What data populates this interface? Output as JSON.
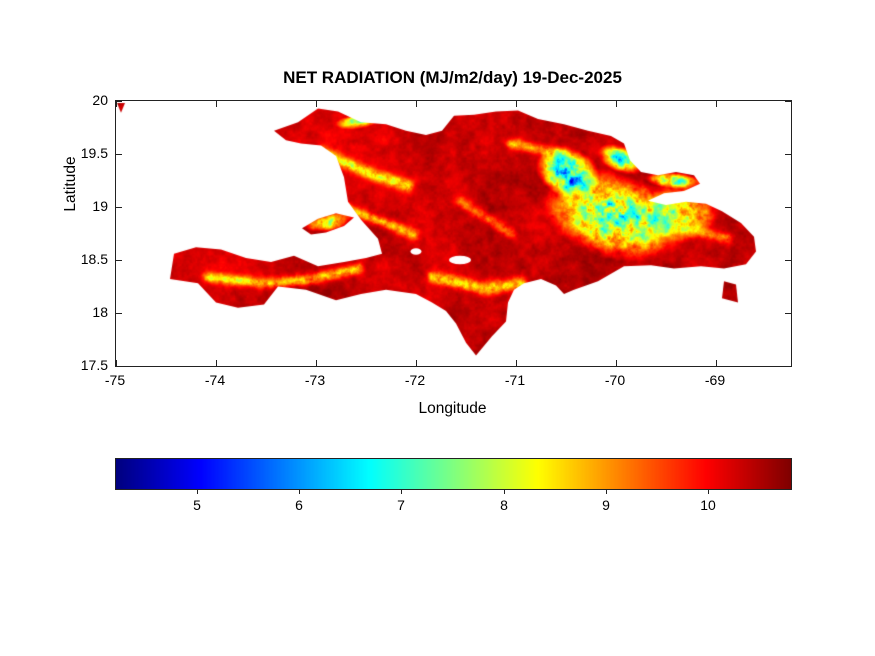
{
  "chart_data": {
    "type": "heatmap",
    "title": "NET RADIATION (MJ/m2/day) 19-Dec-2025",
    "xlabel": "Longitude",
    "ylabel": "Latitude",
    "xlim": [
      -75,
      -68.25
    ],
    "ylim": [
      17.5,
      20
    ],
    "xticks": [
      -75,
      -74,
      -73,
      -72,
      -71,
      -70,
      -69
    ],
    "yticks": [
      20,
      19.5,
      19,
      18.5,
      18,
      17.5
    ],
    "colormap": "jet",
    "value_units": "MJ/m2/day",
    "colorbar": {
      "range": [
        4.2,
        10.8
      ],
      "ticks": [
        5,
        6,
        7,
        8,
        9,
        10
      ]
    },
    "region": "Hispaniola",
    "value_range_displayed": [
      4.5,
      10.65
    ],
    "dominant_value": 10.2,
    "gradient_description": "dark red (9.5-10.6) over most of the island; mottled cyan/green/blue patch (5-8) in the east-central valley region; yellow-green ridge lines along mountain chains",
    "polygons": {
      "regions": [
        {
          "name": "hispaniola-main",
          "points": [
            [
              -73.42,
              19.72
            ],
            [
              -73.18,
              19.8
            ],
            [
              -72.98,
              19.93
            ],
            [
              -72.78,
              19.9
            ],
            [
              -72.55,
              19.8
            ],
            [
              -72.3,
              19.78
            ],
            [
              -72.1,
              19.72
            ],
            [
              -71.9,
              19.68
            ],
            [
              -71.74,
              19.72
            ],
            [
              -71.62,
              19.86
            ],
            [
              -71.42,
              19.87
            ],
            [
              -71.2,
              19.9
            ],
            [
              -70.98,
              19.91
            ],
            [
              -70.78,
              19.83
            ],
            [
              -70.52,
              19.78
            ],
            [
              -70.28,
              19.72
            ],
            [
              -70.05,
              19.67
            ],
            [
              -69.92,
              19.6
            ],
            [
              -69.86,
              19.44
            ],
            [
              -69.75,
              19.33
            ],
            [
              -69.58,
              19.3
            ],
            [
              -69.4,
              19.33
            ],
            [
              -69.22,
              19.3
            ],
            [
              -69.16,
              19.22
            ],
            [
              -69.32,
              19.15
            ],
            [
              -69.52,
              19.13
            ],
            [
              -69.68,
              19.06
            ],
            [
              -69.5,
              19.02
            ],
            [
              -69.3,
              19.05
            ],
            [
              -69.1,
              19.03
            ],
            [
              -68.94,
              18.96
            ],
            [
              -68.75,
              18.85
            ],
            [
              -68.62,
              18.72
            ],
            [
              -68.6,
              18.58
            ],
            [
              -68.7,
              18.46
            ],
            [
              -68.92,
              18.42
            ],
            [
              -69.15,
              18.44
            ],
            [
              -69.42,
              18.42
            ],
            [
              -69.65,
              18.45
            ],
            [
              -69.92,
              18.44
            ],
            [
              -70.18,
              18.3
            ],
            [
              -70.42,
              18.22
            ],
            [
              -70.52,
              18.18
            ],
            [
              -70.6,
              18.26
            ],
            [
              -70.75,
              18.32
            ],
            [
              -70.92,
              18.28
            ],
            [
              -71.02,
              18.22
            ],
            [
              -71.08,
              18.1
            ],
            [
              -71.1,
              17.92
            ],
            [
              -71.24,
              17.78
            ],
            [
              -71.4,
              17.6
            ],
            [
              -71.5,
              17.72
            ],
            [
              -71.6,
              17.9
            ],
            [
              -71.7,
              18.02
            ],
            [
              -71.84,
              18.1
            ],
            [
              -72.0,
              18.18
            ],
            [
              -72.3,
              18.22
            ],
            [
              -72.55,
              18.18
            ],
            [
              -72.8,
              18.12
            ],
            [
              -73.1,
              18.22
            ],
            [
              -73.38,
              18.25
            ],
            [
              -73.52,
              18.08
            ],
            [
              -73.78,
              18.05
            ],
            [
              -74.0,
              18.1
            ],
            [
              -74.18,
              18.28
            ],
            [
              -74.46,
              18.32
            ],
            [
              -74.42,
              18.56
            ],
            [
              -74.2,
              18.62
            ],
            [
              -73.95,
              18.6
            ],
            [
              -73.7,
              18.52
            ],
            [
              -73.45,
              18.48
            ],
            [
              -73.22,
              18.54
            ],
            [
              -72.98,
              18.44
            ],
            [
              -72.72,
              18.48
            ],
            [
              -72.5,
              18.52
            ],
            [
              -72.34,
              18.56
            ],
            [
              -72.38,
              18.7
            ],
            [
              -72.55,
              18.88
            ],
            [
              -72.68,
              19.05
            ],
            [
              -72.72,
              19.28
            ],
            [
              -72.8,
              19.48
            ],
            [
              -72.95,
              19.58
            ],
            [
              -73.15,
              19.6
            ],
            [
              -73.3,
              19.63
            ]
          ]
        },
        {
          "name": "gonave-island",
          "points": [
            [
              -73.14,
              18.8
            ],
            [
              -72.98,
              18.89
            ],
            [
              -72.8,
              18.94
            ],
            [
              -72.62,
              18.9
            ],
            [
              -72.72,
              18.82
            ],
            [
              -72.9,
              18.76
            ],
            [
              -73.05,
              18.74
            ]
          ]
        },
        {
          "name": "saona-islet",
          "points": [
            [
              -68.92,
              18.3
            ],
            [
              -68.8,
              18.27
            ],
            [
              -68.78,
              18.1
            ],
            [
              -68.94,
              18.14
            ]
          ]
        },
        {
          "name": "corner-speck",
          "points": [
            [
              -74.99,
              19.98
            ],
            [
              -74.91,
              19.98
            ],
            [
              -74.95,
              19.89
            ]
          ]
        }
      ],
      "water_holes": [
        {
          "name": "lake-enriquillo",
          "lon": -71.56,
          "lat": 18.5,
          "rx": 0.11,
          "ry": 0.04
        },
        {
          "name": "etang-saumatre",
          "lon": -72.0,
          "lat": 18.58,
          "rx": 0.055,
          "ry": 0.03
        }
      ]
    },
    "features": {
      "seed": 7,
      "base": 10.3,
      "broad_noise_amp": 0.8,
      "fine_noise_amp": 0.5,
      "cool_blobs": [
        {
          "lon": -70.48,
          "lat": 19.33,
          "rx": 0.34,
          "ry": 0.24,
          "rot": -0.35,
          "depth": 3.6,
          "speckle": 2.4
        },
        {
          "lon": -70.02,
          "lat": 18.92,
          "rx": 0.75,
          "ry": 0.42,
          "rot": -0.25,
          "depth": 2.5,
          "speckle": 2.1
        },
        {
          "lon": -69.36,
          "lat": 18.95,
          "rx": 0.4,
          "ry": 0.3,
          "rot": 0.0,
          "depth": 1.7,
          "speckle": 1.6
        },
        {
          "lon": -72.6,
          "lat": 19.8,
          "rx": 0.22,
          "ry": 0.07,
          "rot": 0.1,
          "depth": 2.4,
          "speckle": 1.6
        },
        {
          "lon": -69.42,
          "lat": 19.25,
          "rx": 0.3,
          "ry": 0.08,
          "rot": -0.08,
          "depth": 2.2,
          "speckle": 1.8
        },
        {
          "lon": -69.95,
          "lat": 19.45,
          "rx": 0.25,
          "ry": 0.13,
          "rot": -0.35,
          "depth": 2.4,
          "speckle": 2.0
        },
        {
          "lon": -72.88,
          "lat": 18.86,
          "rx": 0.26,
          "ry": 0.09,
          "rot": 0.15,
          "depth": 1.5,
          "speckle": 1.5
        }
      ],
      "ridges": [
        {
          "points": [
            [
              -72.95,
              19.52
            ],
            [
              -72.48,
              19.32
            ],
            [
              -72.08,
              19.2
            ]
          ],
          "width": 0.055,
          "depth": 2.4
        },
        {
          "points": [
            [
              -72.85,
              19.04
            ],
            [
              -72.4,
              18.88
            ],
            [
              -72.02,
              18.74
            ]
          ],
          "width": 0.05,
          "depth": 2.0
        },
        {
          "points": [
            [
              -74.08,
              18.34
            ],
            [
              -73.55,
              18.28
            ],
            [
              -73.02,
              18.32
            ],
            [
              -72.58,
              18.42
            ]
          ],
          "width": 0.05,
          "depth": 2.2
        },
        {
          "points": [
            [
              -71.82,
              18.34
            ],
            [
              -71.32,
              18.23
            ],
            [
              -70.95,
              18.28
            ]
          ],
          "width": 0.06,
          "depth": 2.2
        },
        {
          "points": [
            [
              -70.62,
              18.14
            ],
            [
              -70.47,
              17.88
            ]
          ],
          "width": 0.05,
          "depth": 1.8
        },
        {
          "points": [
            [
              -71.05,
              19.6
            ],
            [
              -70.52,
              19.5
            ]
          ],
          "width": 0.05,
          "depth": 1.8
        },
        {
          "points": [
            [
              -69.3,
              18.8
            ],
            [
              -68.88,
              18.7
            ]
          ],
          "width": 0.05,
          "depth": 1.5
        },
        {
          "points": [
            [
              -71.55,
              19.05
            ],
            [
              -71.05,
              18.75
            ]
          ],
          "width": 0.05,
          "depth": 1.4
        }
      ]
    }
  }
}
